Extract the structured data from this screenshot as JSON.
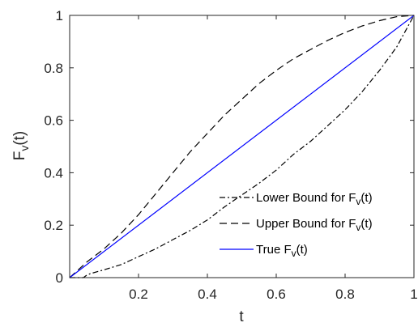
{
  "chart_data": {
    "type": "line",
    "title": "",
    "xlabel": "t",
    "ylabel_base": "F",
    "ylabel_sub": "v",
    "ylabel_suffix": "(t)",
    "xlim": [
      0,
      1
    ],
    "ylim": [
      0,
      1
    ],
    "x_ticks": [
      {
        "value": 0.2,
        "label": "0.2"
      },
      {
        "value": 0.4,
        "label": "0.4"
      },
      {
        "value": 0.6,
        "label": "0.6"
      },
      {
        "value": 0.8,
        "label": "0.8"
      },
      {
        "value": 1.0,
        "label": "1"
      }
    ],
    "y_ticks": [
      {
        "value": 0.0,
        "label": "0"
      },
      {
        "value": 0.2,
        "label": "0.2"
      },
      {
        "value": 0.4,
        "label": "0.4"
      },
      {
        "value": 0.6,
        "label": "0.6"
      },
      {
        "value": 0.8,
        "label": "0.8"
      },
      {
        "value": 1.0,
        "label": "1"
      }
    ],
    "grid": false,
    "legend_position": "bottom-right",
    "series": [
      {
        "name": "Lower Bound for F",
        "legend_sub": "v",
        "legend_suffix": "(t)",
        "color": "#000000",
        "style": "dash-dot",
        "x": [
          0.0,
          0.04,
          0.05,
          0.06,
          0.1,
          0.15,
          0.2,
          0.25,
          0.3,
          0.35,
          0.4,
          0.45,
          0.5,
          0.55,
          0.6,
          0.65,
          0.7,
          0.75,
          0.8,
          0.85,
          0.9,
          0.95,
          1.0
        ],
        "y": [
          0.0,
          0.0,
          0.01,
          0.015,
          0.03,
          0.05,
          0.08,
          0.11,
          0.145,
          0.18,
          0.22,
          0.27,
          0.315,
          0.36,
          0.41,
          0.47,
          0.52,
          0.58,
          0.64,
          0.71,
          0.79,
          0.88,
          1.0
        ]
      },
      {
        "name": "Upper Bound for F",
        "legend_sub": "v",
        "legend_suffix": "(t)",
        "color": "#000000",
        "style": "dashed",
        "x": [
          0.0,
          0.05,
          0.1,
          0.15,
          0.2,
          0.25,
          0.3,
          0.35,
          0.4,
          0.45,
          0.5,
          0.55,
          0.6,
          0.65,
          0.7,
          0.75,
          0.8,
          0.85,
          0.9,
          0.95,
          1.0
        ],
        "y": [
          0.0,
          0.06,
          0.11,
          0.17,
          0.24,
          0.32,
          0.4,
          0.48,
          0.55,
          0.62,
          0.68,
          0.74,
          0.79,
          0.835,
          0.87,
          0.905,
          0.935,
          0.96,
          0.98,
          0.995,
          1.0
        ]
      },
      {
        "name": "True F",
        "legend_sub": "v",
        "legend_suffix": "(t)",
        "color": "#0000ff",
        "style": "solid",
        "x": [
          0.0,
          1.0
        ],
        "y": [
          0.0,
          1.0
        ]
      }
    ]
  }
}
